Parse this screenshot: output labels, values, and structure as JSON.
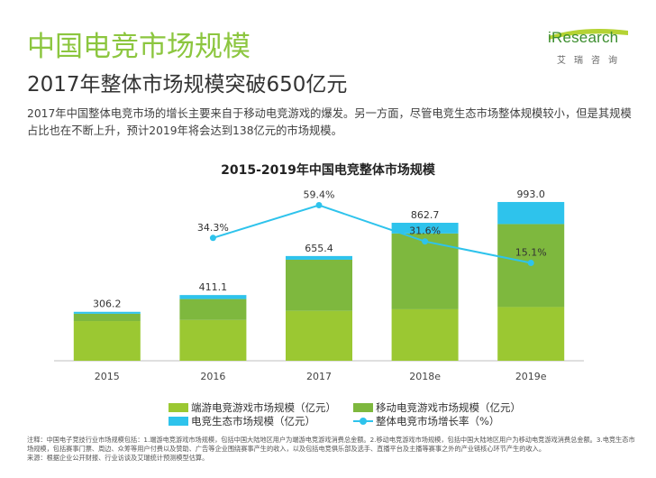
{
  "header": {
    "title": "中国电竞市场规模",
    "subtitle": "2017年整体市场规模突破650亿元",
    "body": "2017年中国整体电竞市场的增长主要来自于移动电竞游戏的爆发。另一方面，尽管电竞生态市场整体规模较小，但是其规模占比也在不断上升，预计2019年将会达到138亿元的市场规模。"
  },
  "logo": {
    "text": "iResearch",
    "sub": "艾瑞咨询"
  },
  "colors": {
    "accent": "#8CC63F",
    "client": "#9BC832",
    "mobile": "#7EB83E",
    "ecosystem": "#2EC3EC",
    "growth": "#2EC3EC"
  },
  "chart_data": {
    "type": "bar",
    "title": "2015-2019年中国电竞整体市场规模",
    "categories": [
      "2015",
      "2016",
      "2017",
      "2018e",
      "2019e"
    ],
    "totals": [
      306.2,
      411.1,
      655.4,
      862.7,
      993.0
    ],
    "total_labels": [
      "306.2",
      "411.1",
      "655.4",
      "862.7",
      "993.0"
    ],
    "stacked": true,
    "series": [
      {
        "name": "端游电竞游戏市场规模（亿元）",
        "values": [
          248,
          255,
          312,
          322,
          336
        ]
      },
      {
        "name": "移动电竞游戏市场规模（亿元）",
        "values": [
          46,
          131,
          320,
          474,
          519
        ]
      },
      {
        "name": "电竞生态市场规模（亿元）",
        "values": [
          12,
          25,
          23,
          67,
          138
        ]
      }
    ],
    "line_series": {
      "name": "整体电竞市场增长率（%）",
      "values": [
        null,
        34.3,
        59.4,
        31.6,
        15.1
      ],
      "labels": [
        "",
        "34.3%",
        "59.4%",
        "31.6%",
        "15.1%"
      ]
    },
    "ylim": [
      0,
      1100
    ],
    "line_ylim": [
      -60,
      75
    ],
    "legend_position": "bottom",
    "grid": false
  },
  "notes": [
    "注释：中国电子竞技行业市场规模包括：1.端游电竞游戏市场规模，包括中国大陆地区用户为端游电竞游戏消费总金额。2.移动电竞游戏市场规模，包括中国大陆地区用户为移动电竞游戏消费总金额。3.电竞生态市场规模，包括赛事门票、周边、众筹等用户付费以及赞助、广告等企业围绕赛事产生的收入，以及包括电竞俱乐部及选手、直播平台及主播等赛事之外的产业链核心环节产生的收入。",
    "来源：根据企业公开财报、行业访谈及艾瑞统计预测模型估算。"
  ]
}
